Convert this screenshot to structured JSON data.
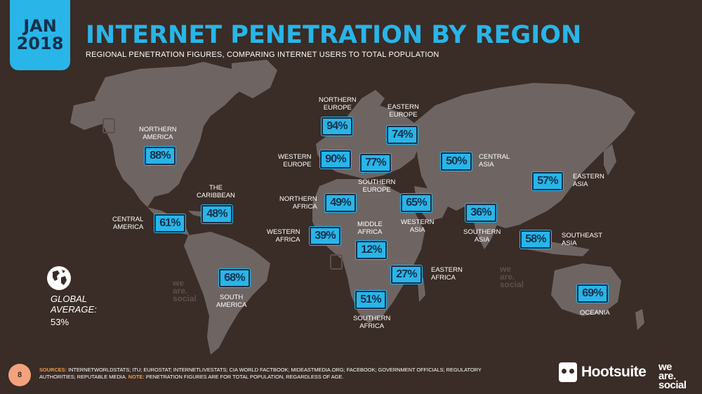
{
  "badge": {
    "month": "JAN",
    "year": "2018"
  },
  "header": {
    "title": "INTERNET PENETRATION BY REGION",
    "subtitle": "REGIONAL PENETRATION FIGURES, COMPARING INTERNET USERS TO TOTAL POPULATION"
  },
  "regions": {
    "northern_america": {
      "label": "NORTHERN\nAMERICA",
      "value": "88%"
    },
    "the_caribbean": {
      "label": "THE\nCARIBBEAN",
      "value": "48%"
    },
    "central_america": {
      "label": "CENTRAL\nAMERICA",
      "value": "61%"
    },
    "south_america": {
      "label": "SOUTH\nAMERICA",
      "value": "68%"
    },
    "northern_europe": {
      "label": "NORTHERN\nEUROPE",
      "value": "94%"
    },
    "western_europe": {
      "label": "WESTERN\nEUROPE",
      "value": "90%"
    },
    "southern_europe": {
      "label": "SOUTHERN\nEUROPE",
      "value": "77%"
    },
    "eastern_europe": {
      "label": "EASTERN\nEUROPE",
      "value": "74%"
    },
    "northern_africa": {
      "label": "NORTHERN\nAFRICA",
      "value": "49%"
    },
    "western_africa": {
      "label": "WESTERN\nAFRICA",
      "value": "39%"
    },
    "middle_africa": {
      "label": "MIDDLE\nAFRICA",
      "value": "12%"
    },
    "eastern_africa": {
      "label": "EASTERN\nAFRICA",
      "value": "27%"
    },
    "southern_africa": {
      "label": "SOUTHERN\nAFRICA",
      "value": "51%"
    },
    "western_asia": {
      "label": "WESTERN\nASIA",
      "value": "65%"
    },
    "central_asia": {
      "label": "CENTRAL\nASIA",
      "value": "50%"
    },
    "southern_asia": {
      "label": "SOUTHERN\nASIA",
      "value": "36%"
    },
    "eastern_asia": {
      "label": "EASTERN\nASIA",
      "value": "57%"
    },
    "southeast_asia": {
      "label": "SOUTHEAST\nASIA",
      "value": "58%"
    },
    "oceania": {
      "label": "OCEANIA",
      "value": "69%"
    }
  },
  "global": {
    "label": "GLOBAL\nAVERAGE:",
    "value": "53%"
  },
  "footer": {
    "page_number": "8",
    "sources_key": "SOURCES:",
    "sources_text": " INTERNETWORLDSTATS; ITU; EUROSTAT; INTERNETLIVESTATS; CIA WORLD FACTBOOK; MIDEASTMEDIA.ORG; FACEBOOK; GOVERNMENT OFFICIALS; REGULATORY AUTHORITIES; REPUTABLE MEDIA. ",
    "note_key": "NOTE:",
    "note_text": " PENETRATION FIGURES ARE FOR TOTAL POPULATION, REGARDLESS OF AGE.",
    "hootsuite": "Hootsuite",
    "we_are_social": "we\nare.\nsocial"
  },
  "watermark": {
    "text": "we\nare.\nsocial"
  },
  "colors": {
    "accent": "#29b5e8",
    "background": "#3a2c26",
    "land": "#6e6563",
    "source_key": "#f29c44"
  }
}
